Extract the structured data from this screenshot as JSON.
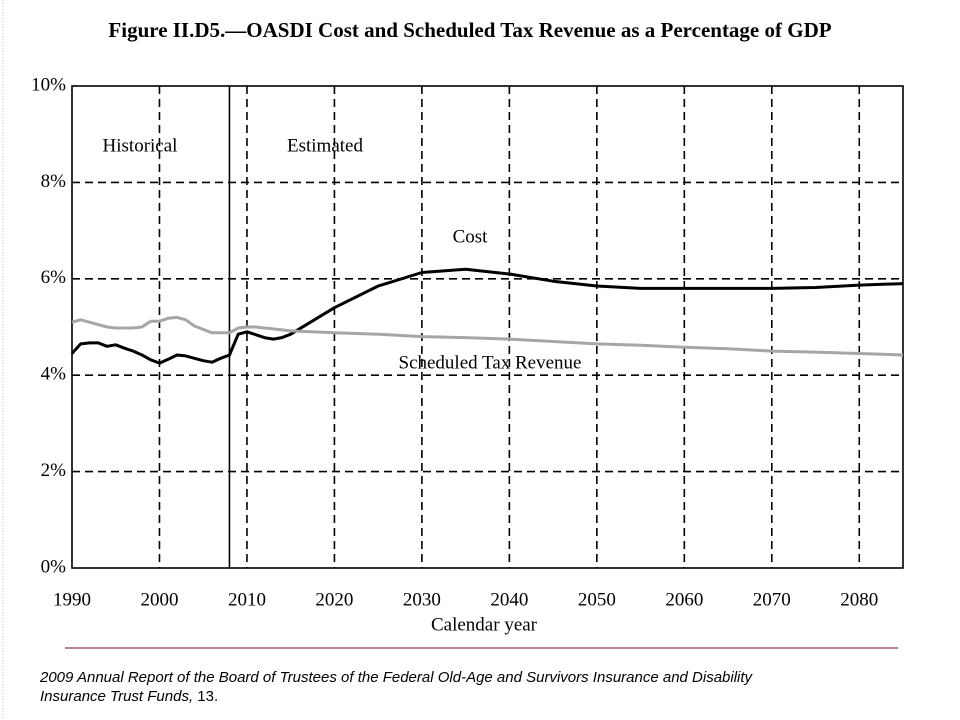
{
  "chart_data": {
    "type": "line",
    "title": "Figure II.D5.—OASDI Cost and Scheduled Tax Revenue as a Percentage of GDP",
    "xlabel": "Calendar year",
    "x": [
      1990,
      1991,
      1992,
      1993,
      1994,
      1995,
      1996,
      1997,
      1998,
      1999,
      2000,
      2001,
      2002,
      2003,
      2004,
      2005,
      2006,
      2007,
      2008,
      2009,
      2010,
      2011,
      2012,
      2013,
      2014,
      2015,
      2020,
      2025,
      2030,
      2035,
      2040,
      2045,
      2050,
      2055,
      2060,
      2065,
      2070,
      2075,
      2080,
      2085
    ],
    "series": [
      {
        "name": "Cost",
        "color": "#000000",
        "values": [
          4.45,
          4.65,
          4.67,
          4.67,
          4.6,
          4.63,
          4.56,
          4.5,
          4.42,
          4.32,
          4.25,
          4.33,
          4.42,
          4.4,
          4.35,
          4.3,
          4.27,
          4.35,
          4.42,
          4.85,
          4.9,
          4.84,
          4.78,
          4.75,
          4.78,
          4.85,
          5.4,
          5.85,
          6.13,
          6.2,
          6.1,
          5.95,
          5.85,
          5.8,
          5.8,
          5.8,
          5.8,
          5.82,
          5.87,
          5.9
        ]
      },
      {
        "name": "Scheduled Tax Revenue",
        "color": "#a6a6a6",
        "values": [
          5.1,
          5.15,
          5.1,
          5.05,
          5.0,
          4.98,
          4.98,
          4.98,
          5.0,
          5.12,
          5.12,
          5.18,
          5.2,
          5.15,
          5.02,
          4.95,
          4.88,
          4.88,
          4.88,
          4.98,
          5.0,
          5.0,
          4.98,
          4.96,
          4.94,
          4.92,
          4.88,
          4.85,
          4.8,
          4.78,
          4.75,
          4.7,
          4.65,
          4.62,
          4.58,
          4.55,
          4.5,
          4.48,
          4.45,
          4.42
        ]
      }
    ],
    "annotations": [
      "Historical",
      "Estimated"
    ],
    "divider_x": 2008,
    "xlim": [
      1990,
      2085
    ],
    "xticks": [
      1990,
      2000,
      2010,
      2020,
      2030,
      2040,
      2050,
      2060,
      2070,
      2080
    ],
    "ylim": [
      0,
      10
    ],
    "yticks": [
      {
        "value": 0,
        "label": "0%"
      },
      {
        "value": 2,
        "label": "2%"
      },
      {
        "value": 4,
        "label": "4%"
      },
      {
        "value": 6,
        "label": "6%"
      },
      {
        "value": 8,
        "label": "8%"
      },
      {
        "value": 10,
        "label": "10%"
      }
    ],
    "grid": true
  },
  "footnote": {
    "source": "2009 Annual Report of the Board of Trustees of the Federal Old-Age and Survivors Insurance and Disability  Insurance Trust Funds,",
    "page": "13."
  }
}
